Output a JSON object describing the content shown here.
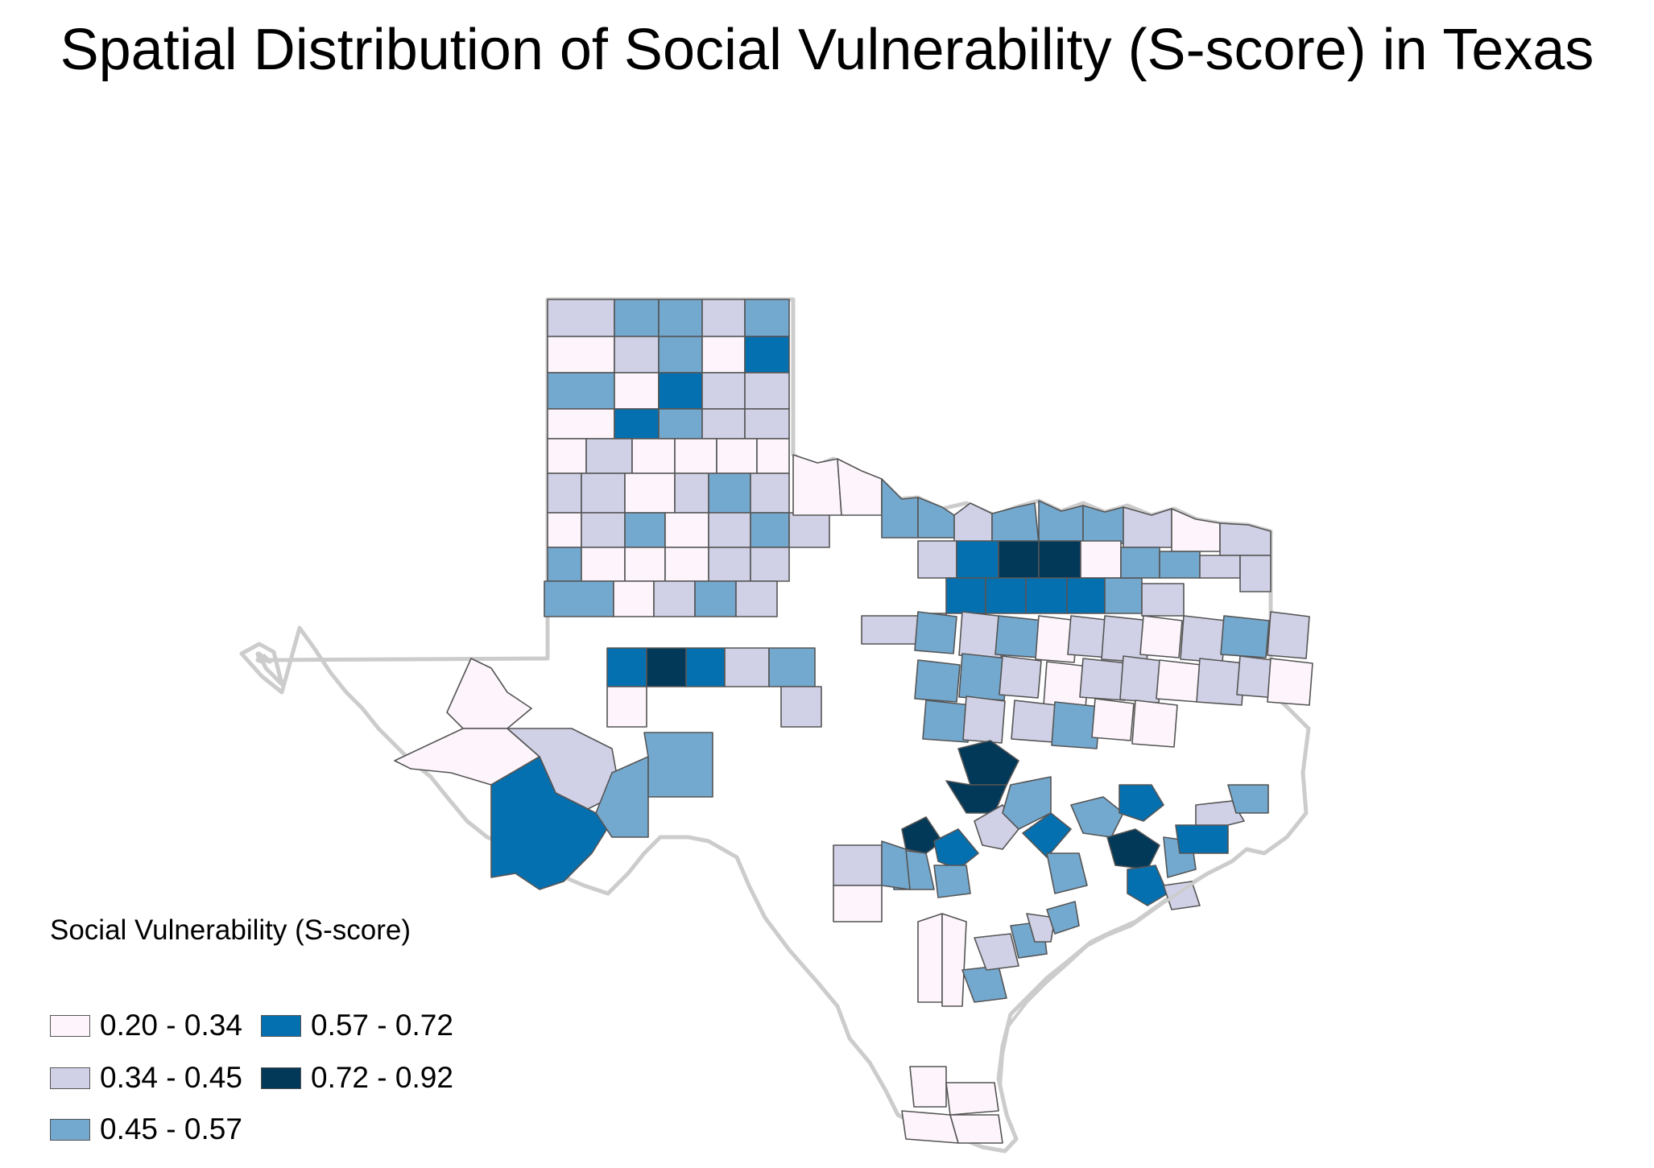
{
  "title": "Spatial Distribution of Social Vulnerability (S-score) in Texas",
  "legend": {
    "title": "Social Vulnerability (S-score)",
    "classes": [
      {
        "label": "0.20 - 0.34",
        "color": "#fdf5fb"
      },
      {
        "label": "0.34 - 0.45",
        "color": "#d0d1e6"
      },
      {
        "label": "0.45 - 0.57",
        "color": "#74a9cf"
      },
      {
        "label": "0.57 - 0.72",
        "color": "#0570b0"
      },
      {
        "label": "0.72 - 0.92",
        "color": "#023858"
      }
    ]
  },
  "map": {
    "region": "Texas",
    "panhandle_rows": [
      [
        2,
        3,
        3,
        2,
        3
      ],
      [
        1,
        2,
        3,
        1,
        4
      ],
      [
        3,
        1,
        4,
        2,
        2
      ],
      [
        1,
        4,
        3,
        2,
        2
      ],
      [
        1,
        2,
        1,
        1,
        1,
        1
      ],
      [
        2,
        2,
        1,
        2,
        3,
        2
      ],
      [
        1,
        2,
        3,
        1,
        2,
        3,
        2
      ],
      [
        3,
        1,
        1,
        1,
        2,
        2
      ],
      [
        3,
        1,
        2,
        3,
        2
      ]
    ],
    "permian_rows": [
      [
        4,
        5,
        4,
        2,
        3
      ],
      [
        1,
        0,
        0,
        0,
        2
      ]
    ],
    "west_counties": [
      1,
      1,
      2,
      4,
      3,
      3
    ],
    "redriver_counties": [
      1,
      1,
      3,
      3,
      2,
      3,
      3,
      3,
      2,
      1,
      2
    ],
    "metro_counties": [
      2,
      4,
      5,
      5,
      1,
      4,
      4,
      4,
      4,
      3,
      3,
      3,
      2,
      2,
      2
    ],
    "central_counties": [
      3,
      2,
      3,
      1,
      2,
      2,
      1,
      2,
      3,
      2,
      3,
      3,
      2,
      1,
      2,
      2,
      1,
      2,
      2,
      1,
      3,
      2,
      2,
      3,
      1,
      1
    ],
    "capital_counties": [
      5,
      5,
      5,
      4,
      3,
      2,
      3,
      4,
      3,
      2,
      3
    ],
    "gulf_counties": [
      3,
      4,
      5,
      4,
      3,
      4,
      2,
      3,
      2,
      3
    ],
    "coastal_counties": [
      1,
      1,
      3,
      2,
      3,
      2,
      3,
      1,
      1,
      1,
      1
    ]
  }
}
